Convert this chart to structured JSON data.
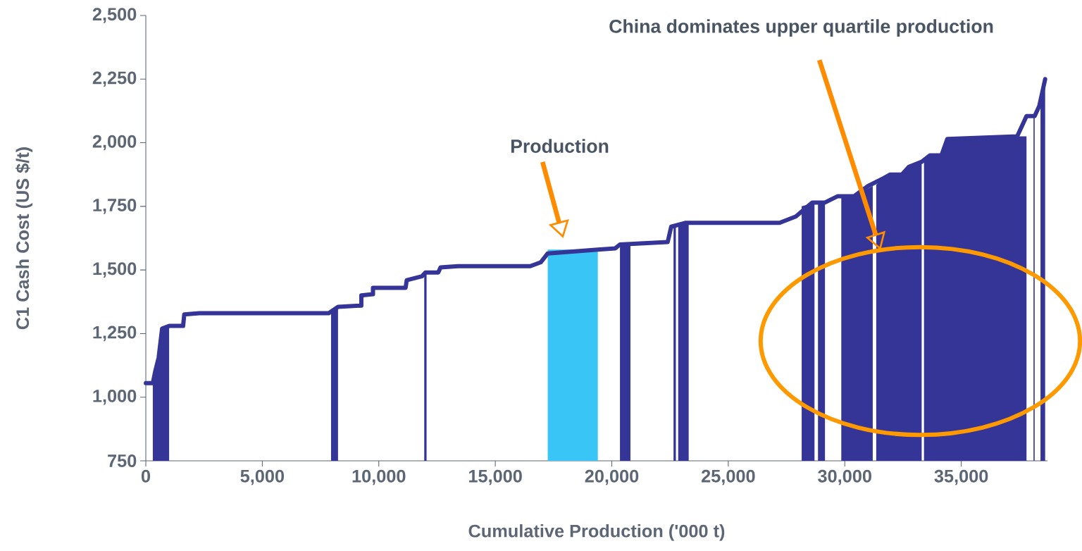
{
  "chart_data": {
    "type": "line",
    "xlabel": "Cumulative Production ('000 t)",
    "ylabel": "C1 Cash Cost (US $/t)",
    "xlim": [
      0,
      38700
    ],
    "ylim": [
      750,
      2500
    ],
    "xticks": [
      0,
      {
        "value": 5000,
        "label": "5,000"
      },
      {
        "value": 10000,
        "label": "10,000"
      },
      {
        "value": 15000,
        "label": "15,000"
      },
      {
        "value": 20000,
        "label": "20,000"
      },
      {
        "value": 25000,
        "label": "25,000"
      },
      {
        "value": 30000,
        "label": "30,000"
      },
      {
        "value": 35000,
        "label": "35,000"
      }
    ],
    "yticks": [
      750,
      {
        "value": 1000,
        "label": "1,000"
      },
      {
        "value": 1250,
        "label": "1,250"
      },
      {
        "value": 1500,
        "label": "1,500"
      },
      {
        "value": 1750,
        "label": "1,750"
      },
      {
        "value": 2000,
        "label": "2,000"
      },
      {
        "value": 2250,
        "label": "2,250"
      },
      {
        "value": 2500,
        "label": "2,500"
      }
    ],
    "series": [
      {
        "type": "area",
        "color": "#353597",
        "x": [
          300,
          400,
          550,
          700,
          1000,
          null,
          7950,
          8250,
          null,
          11950,
          12050,
          null,
          20350,
          20800,
          null,
          22650,
          22750,
          null,
          22850,
          23300,
          null,
          28150,
          28700,
          null,
          28850,
          29150,
          null,
          29850,
          30400,
          31200,
          null,
          31350,
          31650,
          31950,
          32450,
          32750,
          33300,
          null,
          33400,
          33650,
          34150,
          34400,
          37400,
          37800,
          null,
          38100,
          38150,
          null,
          38400,
          38600
        ],
        "values": [
          1055,
          1100,
          1155,
          1270,
          1280,
          null,
          1330,
          1355,
          null,
          1490,
          1490,
          null,
          1600,
          1605,
          null,
          1670,
          1675,
          null,
          1680,
          1685,
          null,
          1750,
          1765,
          null,
          1765,
          1765,
          null,
          1790,
          1790,
          1830,
          null,
          1835,
          1860,
          1875,
          1875,
          1905,
          1925,
          null,
          1930,
          1950,
          1950,
          2015,
          2025,
          2025,
          null,
          2105,
          2105,
          null,
          2150,
          2250
        ]
      },
      {
        "type": "area",
        "color": "#3ac5f7",
        "x": [
          17250,
          19400
        ],
        "values": [
          1580,
          1580
        ]
      },
      {
        "color": "#353597",
        "x": [
          0,
          300,
          400,
          550,
          700,
          1000,
          1600,
          1650,
          2300,
          7850,
          8250,
          9250,
          9250,
          9750,
          9750,
          11150,
          11200,
          11850,
          12000,
          12550,
          12650,
          13400,
          16500,
          16950,
          17250,
          19400,
          20150,
          20350,
          22400,
          22550,
          23150,
          27200,
          27900,
          28600,
          29150,
          29700,
          30400,
          31000,
          31650,
          31950,
          32450,
          32750,
          33300,
          33650,
          34150,
          34400,
          37400,
          37800,
          38150,
          38350,
          38600
        ],
        "values": [
          1055,
          1055,
          1100,
          1155,
          1270,
          1280,
          1280,
          1325,
          1330,
          1330,
          1355,
          1360,
          1400,
          1405,
          1430,
          1430,
          1460,
          1475,
          1490,
          1490,
          1510,
          1515,
          1515,
          1530,
          1565,
          1580,
          1585,
          1600,
          1610,
          1670,
          1685,
          1685,
          1710,
          1765,
          1765,
          1790,
          1790,
          1830,
          1860,
          1875,
          1875,
          1905,
          1925,
          1950,
          1950,
          2015,
          2025,
          2105,
          2105,
          2145,
          2250
        ]
      }
    ],
    "annotations": [
      "Production",
      "China dominates upper quartile production"
    ]
  }
}
